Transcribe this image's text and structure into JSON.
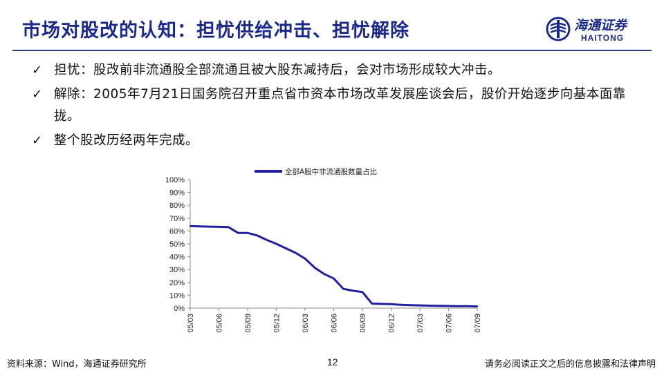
{
  "header": {
    "title": "市场对股改的认知：担忧供给冲击、担忧解除",
    "logo_cn": "海通证券",
    "logo_en": "HAITONG"
  },
  "bullets": [
    {
      "text": "担忧：股改前非流通股全部流通且被大股东减持后，会对市场形成较大冲击。"
    },
    {
      "text": "解除：2005年7月21日国务院召开重点省市资本市场改革发展座谈会后，股价开始逐步向基本面靠拢。"
    },
    {
      "text": "整个股改历经两年完成。"
    }
  ],
  "colors": {
    "title": "#1b2a8a",
    "series": "#1f1f9e",
    "rule": "#2b3a8f"
  },
  "chart_data": {
    "type": "line",
    "x": [
      "05/03",
      "05/04",
      "05/05",
      "05/06",
      "05/07",
      "05/08",
      "05/09",
      "05/10",
      "05/11",
      "05/12",
      "06/01",
      "06/02",
      "06/03",
      "06/04",
      "06/05",
      "06/06",
      "06/07",
      "06/08",
      "06/09",
      "06/10",
      "06/11",
      "06/12",
      "07/01",
      "07/02",
      "07/03",
      "07/04",
      "07/05",
      "07/06",
      "07/07",
      "07/08",
      "07/09"
    ],
    "series": [
      {
        "name": "全部A股中非流通股数量占比",
        "values": [
          63.8,
          63.6,
          63.4,
          63.2,
          63.0,
          58.5,
          58.5,
          56.5,
          53.0,
          50.0,
          46.5,
          43.0,
          38.5,
          31.5,
          26.5,
          23.0,
          15.0,
          13.5,
          12.5,
          3.5,
          3.2,
          3.0,
          2.6,
          2.3,
          2.1,
          1.9,
          1.7,
          1.6,
          1.5,
          1.5,
          1.3
        ]
      }
    ],
    "x_tick_labels": [
      "05/03",
      "05/06",
      "05/09",
      "05/12",
      "06/03",
      "06/06",
      "06/09",
      "06/12",
      "07/03",
      "07/06",
      "07/09"
    ],
    "y_tick_labels": [
      "0%",
      "10%",
      "20%",
      "30%",
      "40%",
      "50%",
      "60%",
      "70%",
      "80%",
      "90%",
      "100%"
    ],
    "ylim": [
      0,
      100
    ],
    "grid": false,
    "legend_position": "top"
  },
  "footer": {
    "source": "资料来源：Wind，海通证券研究所",
    "page_number": "12",
    "disclaimer": "请务必阅读正文之后的信息披露和法律声明"
  }
}
